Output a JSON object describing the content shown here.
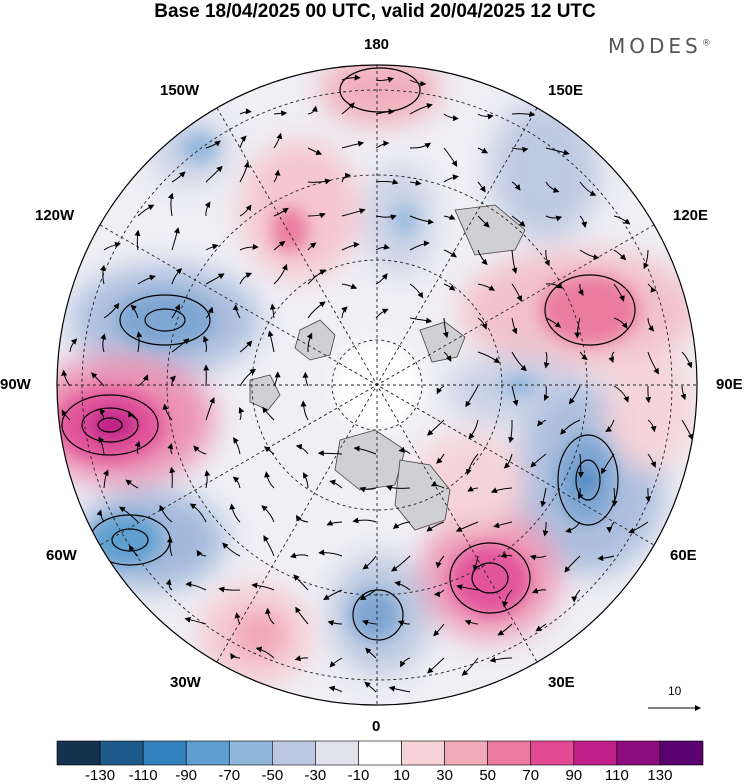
{
  "title": "Base 18/04/2025 00 UTC, valid 20/04/2025 12 UTC",
  "brand": "MODES",
  "brand_mark": "®",
  "longitude_labels": {
    "top": "180",
    "top_left": "150W",
    "top_right": "150E",
    "upper_left": "120W",
    "upper_right": "120E",
    "left": "90W",
    "right": "90E",
    "lower_left": "60W",
    "lower_right": "60E",
    "bottom_left": "30W",
    "bottom_right": "30E",
    "bottom": "0"
  },
  "vector_scale": {
    "label": "10"
  },
  "colorbar": {
    "colors": [
      "#14324f",
      "#1f5a8c",
      "#3381bd",
      "#5e9fcf",
      "#90b6dc",
      "#bcc8e2",
      "#e2e2ef",
      "#ffffff",
      "#f6d3d7",
      "#f1aab8",
      "#ea7ba0",
      "#e24b94",
      "#c0208a",
      "#8d0c7e",
      "#5a006f"
    ],
    "ticks": [
      "-130",
      "-110",
      "-90",
      "-70",
      "-50",
      "-30",
      "-10",
      "10",
      "30",
      "50",
      "70",
      "90",
      "110",
      "130"
    ]
  }
}
